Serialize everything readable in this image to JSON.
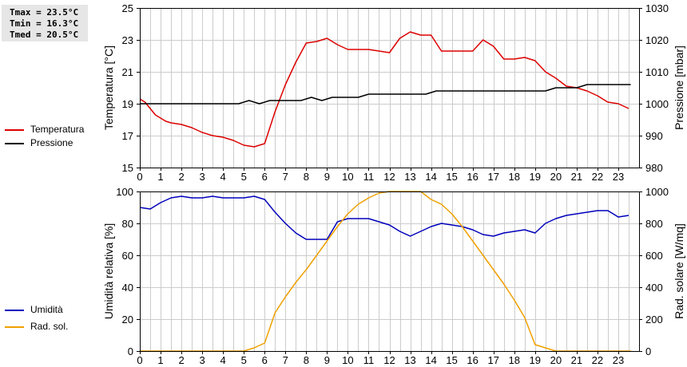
{
  "stats": {
    "tmax": "Tmax = 23.5°C",
    "tmin": "Tmin = 16.3°C",
    "tmed": "Tmed = 20.5°C"
  },
  "colors": {
    "temperature": "#dd0000",
    "pressure": "#000000",
    "humidity": "#0000bb",
    "radiation": "#f0a000",
    "grid": "#cccccc"
  },
  "chart_data": [
    {
      "type": "line",
      "xlim": [
        0,
        24
      ],
      "xticks": [
        0,
        1,
        2,
        3,
        4,
        5,
        6,
        7,
        8,
        9,
        10,
        11,
        12,
        13,
        14,
        15,
        16,
        17,
        18,
        19,
        20,
        21,
        22,
        23
      ],
      "ylabel": "Temperatura [°C]",
      "ylim": [
        15,
        25
      ],
      "yticks": [
        15,
        17,
        19,
        21,
        23,
        25
      ],
      "y2label": "Pressione [mbar]",
      "y2lim": [
        980,
        1030
      ],
      "y2ticks": [
        980,
        990,
        1000,
        1010,
        1020,
        1030
      ],
      "grid": true,
      "legend_position": "left",
      "series": [
        {
          "name": "Temperatura",
          "axis": "left",
          "x": [
            0,
            0.25,
            0.5,
            0.75,
            1,
            1.25,
            1.5,
            2,
            2.5,
            3,
            3.5,
            4,
            4.5,
            5,
            5.5,
            6,
            6.5,
            7,
            7.5,
            8,
            8.5,
            9,
            9.5,
            10,
            10.5,
            11,
            11.5,
            12,
            12.5,
            13,
            13.5,
            14,
            14.5,
            15,
            15.5,
            16,
            16.5,
            17,
            17.5,
            18,
            18.5,
            19,
            19.5,
            20,
            20.5,
            21,
            21.5,
            22,
            22.5,
            23,
            23.5
          ],
          "values": [
            19.3,
            19.1,
            18.7,
            18.3,
            18.1,
            17.9,
            17.8,
            17.7,
            17.5,
            17.2,
            17.0,
            16.9,
            16.7,
            16.4,
            16.3,
            16.5,
            18.5,
            20.2,
            21.6,
            22.8,
            22.9,
            23.1,
            22.7,
            22.4,
            22.4,
            22.4,
            22.3,
            22.2,
            23.1,
            23.5,
            23.3,
            23.3,
            22.3,
            22.3,
            22.3,
            22.3,
            23.0,
            22.6,
            21.8,
            21.8,
            21.9,
            21.7,
            21.0,
            20.6,
            20.1,
            20.0,
            19.8,
            19.5,
            19.1,
            19.0,
            18.7
          ]
        },
        {
          "name": "Pressione",
          "axis": "right",
          "x": [
            0,
            1,
            2,
            3,
            4,
            4.75,
            5.25,
            5.75,
            6.25,
            7,
            7.75,
            8.25,
            8.75,
            9.25,
            10,
            10.5,
            11,
            12,
            13,
            13.75,
            14.25,
            15,
            16,
            17,
            18,
            19,
            19.5,
            20,
            20.5,
            21,
            21.5,
            22,
            23,
            23.6
          ],
          "values": [
            1000,
            1000,
            1000,
            1000,
            1000,
            1000,
            1001,
            1000,
            1001,
            1001,
            1001,
            1002,
            1001,
            1002,
            1002,
            1002,
            1003,
            1003,
            1003,
            1003,
            1004,
            1004,
            1004,
            1004,
            1004,
            1004,
            1004,
            1005,
            1005,
            1005,
            1006,
            1006,
            1006,
            1006
          ]
        }
      ]
    },
    {
      "type": "line",
      "xlim": [
        0,
        24
      ],
      "xticks": [
        0,
        1,
        2,
        3,
        4,
        5,
        6,
        7,
        8,
        9,
        10,
        11,
        12,
        13,
        14,
        15,
        16,
        17,
        18,
        19,
        20,
        21,
        22,
        23
      ],
      "ylabel": "Umidità relativa [%]",
      "ylim": [
        0,
        100
      ],
      "yticks": [
        0,
        20,
        40,
        60,
        80,
        100
      ],
      "y2label": "Rad. solare [W/mq]",
      "y2lim": [
        0,
        1000
      ],
      "y2ticks": [
        0,
        200,
        400,
        600,
        800,
        1000
      ],
      "grid": true,
      "legend_position": "left",
      "series": [
        {
          "name": "Umidità",
          "axis": "left",
          "x": [
            0,
            0.5,
            1,
            1.5,
            2,
            2.5,
            3,
            3.5,
            4,
            4.5,
            5,
            5.5,
            6,
            6.5,
            7,
            7.5,
            8,
            8.5,
            9,
            9.5,
            10,
            10.5,
            11,
            11.5,
            12,
            12.5,
            13,
            13.5,
            14,
            14.5,
            15,
            15.5,
            16,
            16.5,
            17,
            17.5,
            18,
            18.5,
            19,
            19.5,
            20,
            20.5,
            21,
            21.5,
            22,
            22.5,
            23,
            23.5
          ],
          "values": [
            90,
            89,
            93,
            96,
            97,
            96,
            96,
            97,
            96,
            96,
            96,
            97,
            95,
            87,
            80,
            74,
            70,
            70,
            70,
            81,
            83,
            83,
            83,
            81,
            79,
            75,
            72,
            75,
            78,
            80,
            79,
            78,
            76,
            73,
            72,
            74,
            75,
            76,
            74,
            80,
            83,
            85,
            86,
            87,
            88,
            88,
            84,
            85
          ]
        },
        {
          "name": "Rad. sol.",
          "axis": "right",
          "x": [
            0,
            1,
            2,
            3,
            4,
            5,
            5.5,
            6,
            6.5,
            7,
            7.5,
            8,
            8.5,
            9,
            9.5,
            10,
            10.5,
            11,
            11.5,
            12,
            12.5,
            13,
            13.5,
            14,
            14.5,
            15,
            15.5,
            16,
            16.5,
            17,
            17.5,
            18,
            18.5,
            19,
            19.5,
            20,
            21,
            22,
            23,
            23.6
          ],
          "values": [
            0,
            0,
            0,
            0,
            0,
            0,
            20,
            50,
            240,
            340,
            430,
            510,
            600,
            690,
            780,
            860,
            920,
            960,
            990,
            1000,
            1000,
            1000,
            1000,
            950,
            920,
            860,
            780,
            690,
            600,
            510,
            420,
            320,
            210,
            40,
            20,
            0,
            0,
            0,
            0,
            0
          ]
        }
      ]
    }
  ]
}
